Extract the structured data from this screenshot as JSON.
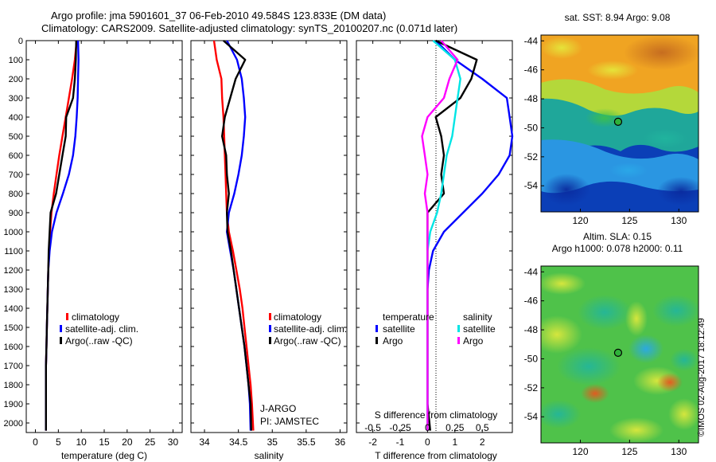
{
  "header": {
    "title_line1": "Argo profile: jma 5901601_37 06-Feb-2010 49.584S 123.833E (DM data)",
    "title_line2": "Climatology: CARS2009. Satellite-adjusted climatology: synTS_20100207.nc (0.071d later)"
  },
  "chart_data": [
    {
      "type": "line",
      "id": "temperature-panel",
      "xlabel": "temperature (deg C)",
      "ylabel": "",
      "xlim": [
        -2,
        32
      ],
      "ylim": [
        2050,
        0
      ],
      "xticks": [
        0,
        5,
        10,
        15,
        20,
        25,
        30
      ],
      "yticks": [
        0,
        100,
        200,
        300,
        400,
        500,
        600,
        700,
        800,
        900,
        1000,
        1100,
        1200,
        1300,
        1400,
        1500,
        1600,
        1700,
        1800,
        1900,
        2000
      ],
      "legend": {
        "position": "lower-middle",
        "entries": [
          "climatology",
          "satellite-adj. clim.",
          "Argo(..raw -QC)"
        ]
      },
      "series": [
        {
          "name": "climatology",
          "color": "#ff0000",
          "x": [
            9.0,
            8.6,
            8.0,
            7.3,
            6.6,
            5.9,
            5.2,
            4.6,
            4.0,
            3.5,
            3.2,
            3.0,
            2.8,
            2.7,
            2.6,
            2.5,
            2.4,
            2.3,
            2.3,
            2.3,
            2.3
          ],
          "y": [
            0,
            100,
            200,
            300,
            400,
            500,
            600,
            700,
            800,
            900,
            1000,
            1100,
            1200,
            1300,
            1400,
            1500,
            1600,
            1700,
            1800,
            1900,
            2040
          ]
        },
        {
          "name": "satellite-adj. clim.",
          "color": "#0000ff",
          "x": [
            9.3,
            9.4,
            9.3,
            9.2,
            9.0,
            8.7,
            8.2,
            7.3,
            6.0,
            4.6,
            3.6,
            3.1,
            2.8,
            2.7,
            2.6,
            2.5,
            2.4,
            2.3,
            2.3,
            2.3,
            2.3
          ],
          "y": [
            0,
            100,
            200,
            300,
            400,
            500,
            600,
            700,
            800,
            900,
            1000,
            1100,
            1200,
            1300,
            1400,
            1500,
            1600,
            1700,
            1800,
            1900,
            2040
          ]
        },
        {
          "name": "Argo(..raw -QC)",
          "color": "#000000",
          "x": [
            8.9,
            8.8,
            8.6,
            8.2,
            6.7,
            6.6,
            5.9,
            5.2,
            4.5,
            3.3,
            3.1,
            2.9,
            2.8,
            2.7,
            2.6,
            2.5,
            2.4,
            2.3,
            2.3,
            2.3,
            2.3
          ],
          "y": [
            0,
            100,
            200,
            300,
            400,
            500,
            600,
            700,
            800,
            900,
            1000,
            1100,
            1200,
            1300,
            1400,
            1500,
            1600,
            1700,
            1800,
            1900,
            2040
          ]
        }
      ]
    },
    {
      "type": "line",
      "id": "salinity-panel",
      "xlabel": "salinity",
      "ylabel": "",
      "xlim": [
        33.8,
        36.1
      ],
      "ylim": [
        2050,
        0
      ],
      "xticks": [
        34,
        34.5,
        35,
        35.5,
        36
      ],
      "legend": {
        "position": "lower-middle",
        "entries": [
          "climatology",
          "satellite-adj. clim.",
          "Argo(..raw -QC)"
        ]
      },
      "annotations": [
        "J-ARGO",
        "PI: JAMSTEC"
      ],
      "series": [
        {
          "name": "climatology",
          "color": "#ff0000",
          "x": [
            34.14,
            34.18,
            34.25,
            34.26,
            34.28,
            34.29,
            34.3,
            34.31,
            34.32,
            34.33,
            34.36,
            34.42,
            34.47,
            34.52,
            34.56,
            34.59,
            34.62,
            34.65,
            34.68,
            34.7,
            34.72
          ],
          "y": [
            0,
            100,
            200,
            300,
            400,
            500,
            600,
            700,
            800,
            900,
            1000,
            1100,
            1200,
            1300,
            1400,
            1500,
            1600,
            1700,
            1800,
            1900,
            2040
          ]
        },
        {
          "name": "satellite-adj. clim.",
          "color": "#0000ff",
          "x": [
            34.33,
            34.48,
            34.55,
            34.58,
            34.6,
            34.58,
            34.55,
            34.5,
            34.44,
            34.36,
            34.33,
            34.38,
            34.43,
            34.47,
            34.51,
            34.55,
            34.59,
            34.62,
            34.65,
            34.67,
            34.68
          ],
          "y": [
            0,
            100,
            200,
            300,
            400,
            500,
            600,
            700,
            800,
            900,
            1000,
            1100,
            1200,
            1300,
            1400,
            1500,
            1600,
            1700,
            1800,
            1900,
            2040
          ]
        },
        {
          "name": "Argo(..raw -QC)",
          "color": "#000000",
          "x": [
            34.28,
            34.6,
            34.46,
            34.38,
            34.3,
            34.26,
            34.32,
            34.33,
            34.36,
            34.33,
            34.34,
            34.39,
            34.43,
            34.47,
            34.51,
            34.55,
            34.59,
            34.62,
            34.65,
            34.68,
            34.69
          ],
          "y": [
            0,
            100,
            200,
            300,
            400,
            500,
            600,
            700,
            800,
            900,
            1000,
            1100,
            1200,
            1300,
            1400,
            1500,
            1600,
            1700,
            1800,
            1900,
            2040
          ]
        }
      ]
    },
    {
      "type": "line",
      "id": "difference-panel",
      "xlabel": "T difference from climatology",
      "xlabel_top": "S difference from climatology",
      "xlim": [
        -2.6,
        3.1
      ],
      "ylim": [
        2050,
        0
      ],
      "xticks": [
        -2,
        -1,
        0,
        1,
        2
      ],
      "xticks_s": [
        "-0.5",
        "-0.25",
        "0",
        "0.25",
        "0.5"
      ],
      "legend": {
        "position": "lower-middle",
        "headers": [
          "temperature",
          "salinity"
        ],
        "entries": [
          "satellite",
          "Argo",
          "satellite",
          "Argo"
        ]
      },
      "series": [
        {
          "name": "temperature satellite",
          "color": "#0000ff",
          "x": [
            0.3,
            1.0,
            2.0,
            2.9,
            3.0,
            3.1,
            3.0,
            2.6,
            2.0,
            1.3,
            0.6,
            0.2,
            0.05,
            0.0,
            0.0,
            0.0,
            0.0,
            0.0,
            0.0,
            0.0,
            0.0
          ],
          "y": [
            0,
            100,
            200,
            300,
            400,
            500,
            600,
            700,
            800,
            900,
            1000,
            1100,
            1200,
            1300,
            1400,
            1500,
            1600,
            1700,
            1800,
            1900,
            2040
          ]
        },
        {
          "name": "temperature Argo",
          "color": "#000000",
          "x": [
            0.3,
            1.8,
            1.6,
            1.2,
            0.3,
            0.5,
            0.6,
            0.5,
            0.6,
            0.0,
            0.0,
            0.0,
            0.0,
            0.0,
            0.0,
            0.0,
            0.0,
            0.0,
            0.0,
            0.0,
            0.1
          ],
          "y": [
            0,
            100,
            200,
            300,
            400,
            500,
            600,
            700,
            800,
            900,
            1000,
            1100,
            1200,
            1300,
            1400,
            1500,
            1600,
            1700,
            1800,
            1900,
            2040
          ]
        },
        {
          "name": "salinity satellite",
          "color": "#00e5e5",
          "x": [
            0.2,
            1.0,
            1.2,
            1.1,
            1.0,
            0.9,
            0.7,
            0.6,
            0.5,
            0.35,
            0.1,
            0.0,
            0.0,
            0.0,
            0.0,
            0.0,
            0.0,
            0.0,
            0.0,
            0.0,
            0.0
          ],
          "y": [
            0,
            100,
            200,
            300,
            400,
            500,
            600,
            700,
            800,
            900,
            1000,
            1100,
            1200,
            1300,
            1400,
            1500,
            1600,
            1700,
            1800,
            1900,
            2040
          ]
        },
        {
          "name": "salinity Argo",
          "color": "#ff00ff",
          "x": [
            0.5,
            1.1,
            0.8,
            0.6,
            0.0,
            -0.2,
            -0.1,
            0.0,
            -0.1,
            0.0,
            0.0,
            0.0,
            0.0,
            0.0,
            0.0,
            0.0,
            0.0,
            0.0,
            0.0,
            0.0,
            0.0
          ],
          "y": [
            0,
            100,
            200,
            300,
            400,
            500,
            600,
            700,
            800,
            900,
            1000,
            1100,
            1200,
            1300,
            1400,
            1500,
            1600,
            1700,
            1800,
            1900,
            2040
          ]
        }
      ]
    },
    {
      "type": "heatmap",
      "id": "sst-map",
      "title": "sat. SST: 8.94  Argo: 9.08",
      "xlim": [
        116,
        132
      ],
      "ylim": [
        -55.8,
        -43.6
      ],
      "xticks": [
        120,
        125,
        130
      ],
      "yticks": [
        -44,
        -46,
        -48,
        -50,
        -52,
        -54
      ],
      "marker": {
        "lon": 123.833,
        "lat": -49.584
      }
    },
    {
      "type": "heatmap",
      "id": "sla-map",
      "title_line1": "Altim. SLA: 0.15",
      "title_line2": "Argo h1000: 0.078 h2000: 0.11",
      "xlim": [
        116,
        132
      ],
      "ylim": [
        -55.8,
        -43.6
      ],
      "xticks": [
        120,
        125,
        130
      ],
      "yticks": [
        -44,
        -46,
        -48,
        -50,
        -52,
        -54
      ],
      "marker": {
        "lon": 123.833,
        "lat": -49.584
      }
    }
  ],
  "footer": {
    "stamp": "©IMOS 02-Aug-2017 18:12:49"
  }
}
